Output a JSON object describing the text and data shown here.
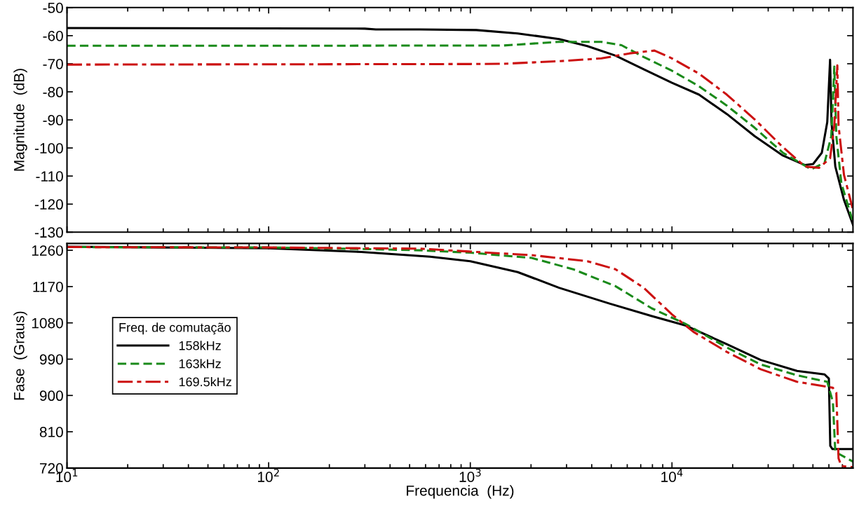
{
  "chart_data": [
    {
      "type": "line",
      "ylabel": "Magnitude  (dB)",
      "xlim": [
        10,
        79000
      ],
      "ylim": [
        -130,
        -50
      ],
      "log": "x",
      "tick_labels": "y",
      "xticks": [
        {
          "value": 10,
          "label": null
        },
        {
          "value": 100,
          "label": null
        },
        {
          "value": 1000,
          "label": null
        },
        {
          "value": 10000,
          "label": null
        }
      ],
      "yticks": [
        -130,
        -120,
        -110,
        -100,
        -90,
        -80,
        -70,
        -60,
        -50
      ],
      "series": [
        {
          "color": "#000000",
          "line_style": "solid",
          "x": [
            10,
            100,
            300,
            340,
            562,
            1072,
            1718,
            2754,
            3802,
            5248,
            7244,
            10000,
            13614,
            18707,
            25704,
            35481,
            45709,
            50119,
            55335,
            58884,
            60814,
            61802,
            64565,
            71285,
            79000
          ],
          "values": [
            -57.3,
            -57.4,
            -57.5,
            -57.8,
            -57.8,
            -58,
            -59.2,
            -61.2,
            -63.7,
            -67.1,
            -72,
            -76.8,
            -81,
            -87.9,
            -95.8,
            -102.7,
            -106.1,
            -105.7,
            -101.7,
            -90.8,
            -68.6,
            -90.8,
            -106.6,
            -118.5,
            -127.4
          ]
        },
        {
          "color": "#1a8a1a",
          "line_style": "dashed",
          "x": [
            10,
            100,
            1000,
            1466,
            2754,
            4467,
            5623,
            7244,
            10000,
            13614,
            18707,
            25704,
            35481,
            48978,
            57150,
            61660,
            63830,
            65310,
            69180,
            79000
          ],
          "values": [
            -63.6,
            -63.6,
            -63.5,
            -63.5,
            -62.2,
            -62.2,
            -63.4,
            -67.6,
            -72.5,
            -78,
            -84.9,
            -92.8,
            -101.7,
            -107.6,
            -105.2,
            -95.8,
            -71,
            -95.8,
            -112.6,
            -126.4
          ]
        },
        {
          "color": "#cc1111",
          "line_style": "dashdot",
          "x": [
            10,
            100,
            1000,
            1466,
            2754,
            4467,
            6166,
            8185,
            10000,
            13614,
            18707,
            25704,
            35481,
            45709,
            53580,
            60814,
            63830,
            66070,
            66990,
            71285,
            79000
          ],
          "values": [
            -70.3,
            -70.2,
            -70.1,
            -70,
            -69.1,
            -68.1,
            -66.3,
            -65.3,
            -68.1,
            -73.5,
            -81,
            -89.8,
            -99.7,
            -106.6,
            -107.1,
            -103.7,
            -92,
            -70.6,
            -92,
            -109.6,
            -122
          ]
        }
      ]
    },
    {
      "type": "line",
      "ylabel": "Fase  (Graus)",
      "xlabel": "Frequencia  (Hz)",
      "xlim": [
        10,
        79000
      ],
      "ylim": [
        720,
        1277
      ],
      "log": "x",
      "xticks": [
        {
          "value": 10,
          "label": "10$^{1}$"
        },
        {
          "value": 100,
          "label": "10$^{2}$"
        },
        {
          "value": 1000,
          "label": "10$^{3}$"
        },
        {
          "value": 10000,
          "label": "10$^{4}$"
        }
      ],
      "yticks": [
        720,
        810,
        900,
        990,
        1080,
        1170,
        1260
      ],
      "legend": "center left",
      "legend_title": "Freq. de comutação",
      "series": [
        {
          "name": "158kHz",
          "color": "#000000",
          "line_style": "solid",
          "x": [
            10,
            30,
            100,
            288,
            631,
            1000,
            1718,
            2754,
            4898,
            7943,
            11614,
            18707,
            27542,
            41687,
            57150,
            59980,
            60950,
            62520,
            79000
          ],
          "values": [
            1269,
            1267,
            1265,
            1256,
            1244,
            1233,
            1206,
            1167,
            1128,
            1097,
            1074,
            1027,
            988,
            961,
            952,
            942,
            775,
            767,
            767
          ]
        },
        {
          "name": "163kHz",
          "color": "#1a8a1a",
          "line_style": "dashed",
          "x": [
            10,
            100,
            316,
            562,
            1000,
            2014,
            3236,
            5248,
            7943,
            11614,
            18707,
            27542,
            41687,
            58884,
            62810,
            64565,
            79000
          ],
          "values": [
            1268,
            1267,
            1263,
            1260,
            1254,
            1241,
            1213,
            1171,
            1116,
            1078,
            1019,
            977,
            950,
            934,
            884,
            760,
            736
          ]
        },
        {
          "name": "169.5kHz",
          "color": "#cc1111",
          "line_style": "dashdot",
          "x": [
            10,
            100,
            562,
            2014,
            3802,
            5248,
            7244,
            10000,
            12760,
            18707,
            27542,
            41687,
            62810,
            65310,
            66990,
            69180,
            79000
          ],
          "values": [
            1268,
            1267,
            1264,
            1248,
            1233,
            1213,
            1167,
            1101,
            1058,
            1008,
            965,
            934,
            919,
            907,
            744,
            725,
            722
          ]
        }
      ]
    }
  ]
}
